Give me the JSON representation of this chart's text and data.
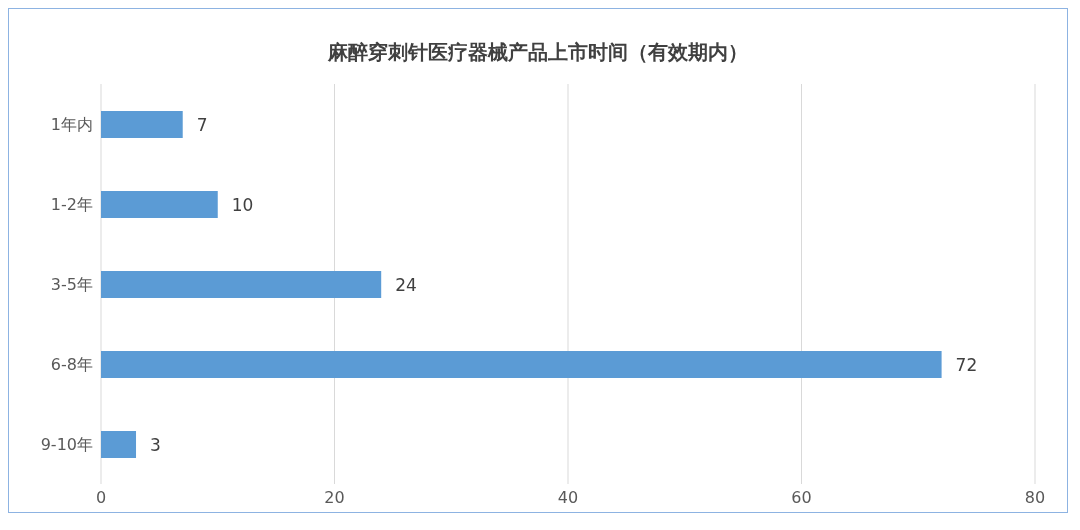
{
  "chart_data": {
    "type": "bar",
    "orientation": "horizontal",
    "title": "麻醉穿刺针医疗器械产品上市时间（有效期内）",
    "categories": [
      "1年内",
      "1-2年",
      "3-5年",
      "6-8年",
      "9-10年"
    ],
    "values": [
      7,
      10,
      24,
      72,
      3
    ],
    "color": "#5b9bd5",
    "xlim": [
      0,
      80
    ],
    "xticks": [
      0,
      20,
      40,
      60,
      80
    ],
    "grid": "x",
    "data_labels": true
  }
}
